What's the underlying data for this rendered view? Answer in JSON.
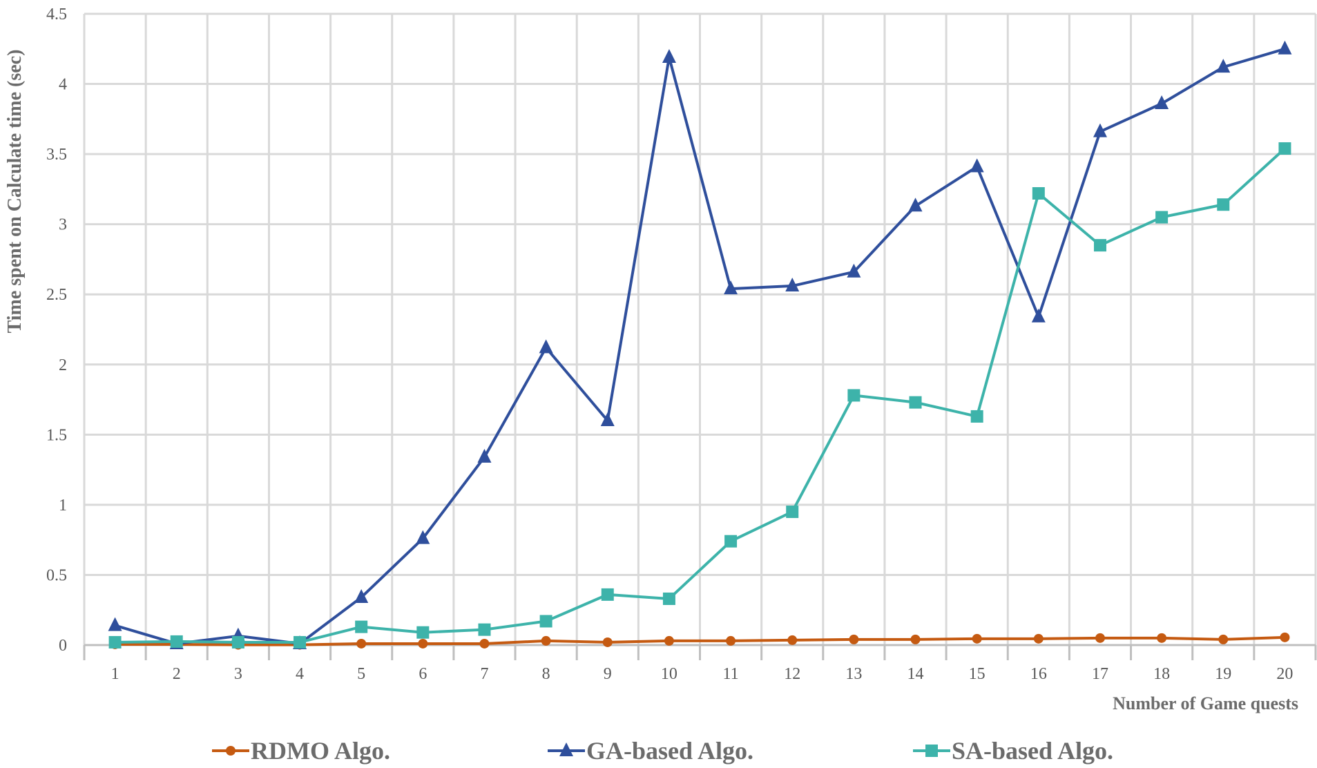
{
  "chart_data": {
    "type": "line",
    "title": "",
    "xlabel": "Number of Game quests",
    "ylabel": "Time spent on Calculate time (sec)",
    "ylim": [
      0,
      4.5
    ],
    "yticks": [
      "0",
      "0.5",
      "1",
      "1.5",
      "2",
      "2.5",
      "3",
      "3.5",
      "4",
      "4.5"
    ],
    "categories": [
      "1",
      "2",
      "3",
      "4",
      "5",
      "6",
      "7",
      "8",
      "9",
      "10",
      "11",
      "12",
      "13",
      "14",
      "15",
      "16",
      "17",
      "18",
      "19",
      "20"
    ],
    "grid": true,
    "legend_position": "bottom",
    "series": [
      {
        "name": "RDMO Algo.",
        "color": "#C55A11",
        "marker": "circle",
        "values": [
          0.005,
          0.005,
          0.002,
          0.002,
          0.01,
          0.01,
          0.01,
          0.03,
          0.02,
          0.03,
          0.03,
          0.035,
          0.04,
          0.04,
          0.045,
          0.045,
          0.05,
          0.05,
          0.04,
          0.055
        ]
      },
      {
        "name": "GA-based Algo.",
        "color": "#2F4F9C",
        "marker": "triangle",
        "values": [
          0.14,
          0.01,
          0.065,
          0.01,
          0.34,
          0.76,
          1.34,
          2.12,
          1.6,
          4.19,
          2.54,
          2.56,
          2.66,
          3.13,
          3.41,
          2.34,
          3.66,
          3.86,
          4.12,
          4.25
        ]
      },
      {
        "name": "SA-based Algo.",
        "color": "#3DB3AA",
        "marker": "square",
        "values": [
          0.02,
          0.025,
          0.02,
          0.02,
          0.13,
          0.09,
          0.11,
          0.17,
          0.36,
          0.33,
          0.74,
          0.95,
          1.78,
          1.73,
          1.63,
          3.22,
          2.85,
          3.05,
          3.14,
          3.54
        ]
      }
    ]
  }
}
